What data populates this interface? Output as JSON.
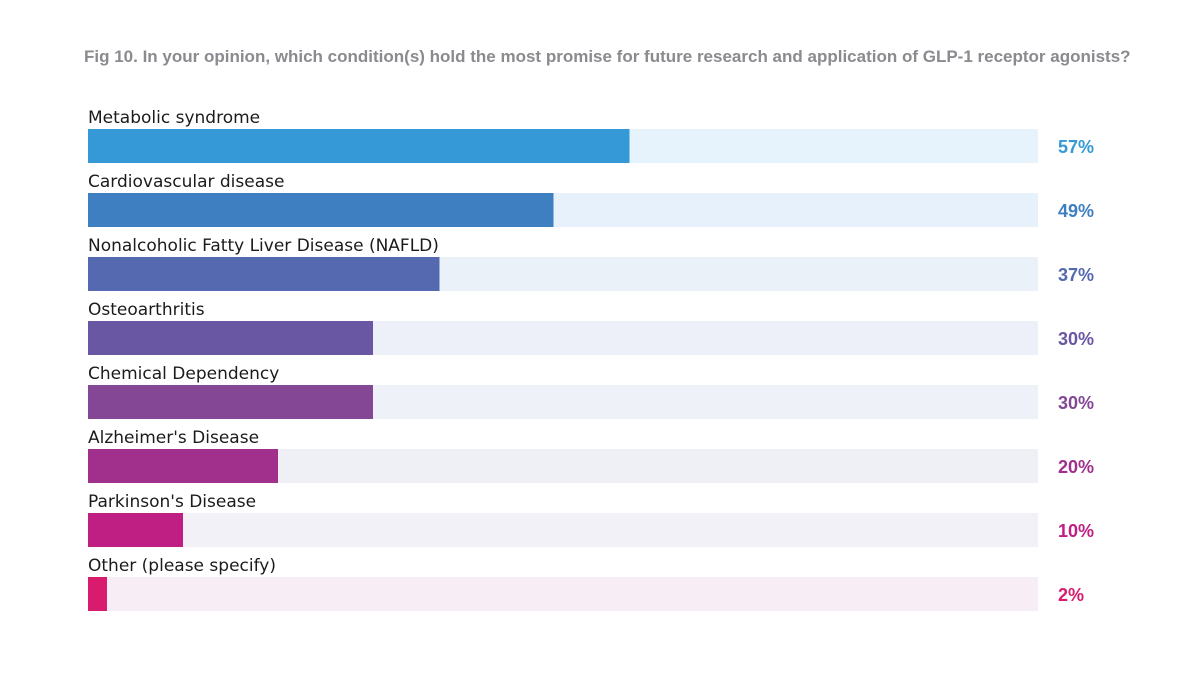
{
  "chart_data": {
    "type": "bar",
    "orientation": "horizontal",
    "title": "Fig 10. In your opinion, which condition(s) hold the most promise for future research and application of GLP-1 receptor agonists?",
    "xlabel": "",
    "ylabel": "",
    "xlim": [
      0,
      100
    ],
    "grid": false,
    "categories": [
      "Metabolic syndrome",
      "Cardiovascular disease",
      "Nonalcoholic Fatty Liver Disease (NAFLD)",
      "Osteoarthritis",
      "Chemical Dependency",
      "Alzheimer's Disease",
      "Parkinson's Disease",
      "Other (please specify)"
    ],
    "values": [
      57,
      49,
      37,
      30,
      30,
      20,
      10,
      2
    ],
    "value_labels": [
      "57%",
      "49%",
      "37%",
      "30%",
      "30%",
      "20%",
      "10%",
      "2%"
    ],
    "colors": [
      "#3499d6",
      "#3e7fc2",
      "#5569b1",
      "#6a57a3",
      "#844796",
      "#a0308c",
      "#bf1e83",
      "#d81b6c"
    ],
    "track_colors": [
      "#e6f3fc",
      "#e6f1fb",
      "#eaf1f9",
      "#edf0f8",
      "#eef1f8",
      "#efeff6",
      "#f2f1f8",
      "#f6eef4"
    ]
  }
}
